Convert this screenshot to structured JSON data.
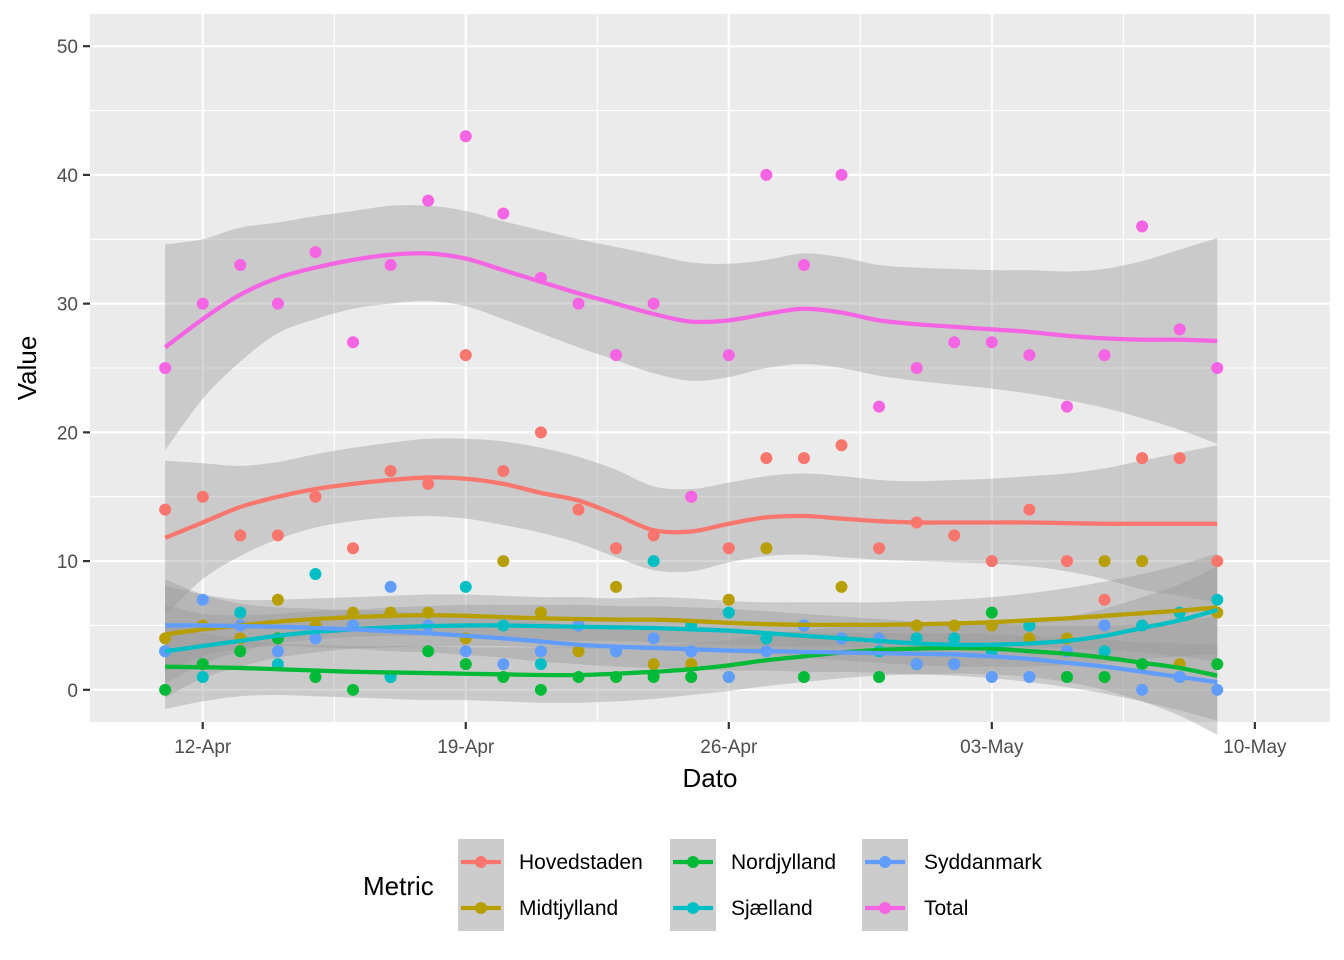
{
  "chart_data": {
    "type": "scatter",
    "title": "",
    "xlabel": "Dato",
    "ylabel": "Value",
    "ylim": [
      -2.5,
      52.5
    ],
    "xlim": [
      "2020-04-09",
      "2020-05-12"
    ],
    "y_ticks": [
      0,
      10,
      20,
      30,
      40,
      50
    ],
    "x_ticks": [
      {
        "date": "2020-04-12",
        "label": "12-Apr"
      },
      {
        "date": "2020-04-19",
        "label": "19-Apr"
      },
      {
        "date": "2020-04-26",
        "label": "26-Apr"
      },
      {
        "date": "2020-05-03",
        "label": "03-May"
      },
      {
        "date": "2020-05-10",
        "label": "10-May"
      }
    ],
    "smooth": "loess with confidence band",
    "grid": true,
    "legend_title": "Metric",
    "legend_position": "bottom",
    "x": [
      "2020-04-11",
      "2020-04-12",
      "2020-04-13",
      "2020-04-14",
      "2020-04-15",
      "2020-04-16",
      "2020-04-17",
      "2020-04-18",
      "2020-04-19",
      "2020-04-20",
      "2020-04-21",
      "2020-04-22",
      "2020-04-23",
      "2020-04-24",
      "2020-04-25",
      "2020-04-26",
      "2020-04-27",
      "2020-04-28",
      "2020-04-29",
      "2020-04-30",
      "2020-05-01",
      "2020-05-02",
      "2020-05-03",
      "2020-05-04",
      "2020-05-05",
      "2020-05-06",
      "2020-05-07",
      "2020-05-08",
      "2020-05-09"
    ],
    "series": [
      {
        "name": "Hovedstaden",
        "color": "#F8766D",
        "values": [
          14,
          15,
          12,
          12,
          15,
          11,
          17,
          16,
          26,
          17,
          20,
          14,
          11,
          12,
          15,
          11,
          18,
          18,
          19,
          11,
          13,
          12,
          10,
          14,
          10,
          7,
          18,
          18,
          10
        ],
        "smooth": [
          11.8,
          13,
          14.2,
          15,
          15.6,
          16,
          16.3,
          16.5,
          16.4,
          16,
          15.3,
          14.7,
          13.6,
          12.4,
          12.3,
          12.9,
          13.4,
          13.5,
          13.3,
          13.1,
          13,
          13,
          13,
          13,
          12.95,
          12.9,
          12.9,
          12.9,
          12.9
        ],
        "band_lo": [
          5.8,
          8.6,
          10.4,
          11.7,
          12.6,
          13.1,
          13.4,
          13.5,
          13.3,
          12.8,
          12.2,
          11.4,
          10.3,
          9.3,
          9.2,
          9.9,
          10.4,
          10.5,
          10.3,
          10.1,
          10.0,
          9.9,
          9.8,
          9.6,
          9.2,
          8.6,
          7.8,
          7.3,
          6.8
        ],
        "band_hi": [
          17.8,
          17.6,
          17.4,
          17.7,
          18.3,
          18.8,
          19.2,
          19.5,
          19.5,
          19.3,
          18.8,
          18.1,
          17.1,
          15.8,
          15.6,
          16.1,
          16.6,
          16.8,
          16.6,
          16.3,
          16.2,
          16.3,
          16.4,
          16.6,
          16.8,
          17.2,
          17.8,
          18.4,
          19.0
        ]
      },
      {
        "name": "Midtjylland",
        "color": "#B79F00",
        "values": [
          4,
          5,
          4,
          7,
          5,
          6,
          6,
          6,
          4,
          10,
          6,
          3,
          8,
          2,
          2,
          7,
          11,
          5,
          8,
          4,
          5,
          5,
          5,
          4,
          4,
          10,
          10,
          2,
          6
        ],
        "smooth": [
          4.3,
          4.7,
          5.0,
          5.3,
          5.5,
          5.65,
          5.75,
          5.8,
          5.75,
          5.65,
          5.55,
          5.5,
          5.45,
          5.45,
          5.35,
          5.2,
          5.1,
          5.05,
          5.05,
          5.05,
          5.1,
          5.15,
          5.25,
          5.4,
          5.55,
          5.75,
          5.95,
          6.15,
          6.4
        ],
        "band_lo": [
          0.5,
          2.0,
          3.0,
          3.6,
          3.9,
          4.1,
          4.2,
          4.2,
          4.1,
          4.0,
          3.9,
          3.8,
          3.8,
          3.7,
          3.6,
          3.5,
          3.4,
          3.3,
          3.3,
          3.3,
          3.3,
          3.3,
          3.3,
          3.3,
          3.2,
          3.1,
          2.9,
          2.6,
          2.2
        ],
        "band_hi": [
          8.1,
          7.4,
          7.0,
          7.0,
          7.1,
          7.2,
          7.3,
          7.4,
          7.4,
          7.3,
          7.2,
          7.2,
          7.1,
          7.2,
          7.1,
          6.9,
          6.8,
          6.8,
          6.8,
          6.8,
          6.9,
          7.0,
          7.2,
          7.5,
          7.9,
          8.4,
          9.0,
          9.7,
          10.6
        ]
      },
      {
        "name": "Nordjylland",
        "color": "#00BA38",
        "values": [
          0,
          2,
          3,
          4,
          1,
          0,
          1,
          3,
          2,
          1,
          0,
          1,
          1,
          1,
          1,
          1,
          4,
          1,
          4,
          1,
          2,
          2,
          6,
          5,
          1,
          1,
          2,
          1,
          2
        ],
        "smooth": [
          1.8,
          1.75,
          1.7,
          1.6,
          1.5,
          1.4,
          1.35,
          1.3,
          1.25,
          1.2,
          1.15,
          1.15,
          1.25,
          1.4,
          1.6,
          1.9,
          2.3,
          2.6,
          2.9,
          3.1,
          3.2,
          3.25,
          3.2,
          3.0,
          2.8,
          2.5,
          2.1,
          1.7,
          1.1
        ],
        "band_lo": [
          -1.5,
          -0.9,
          -0.5,
          -0.4,
          -0.5,
          -0.6,
          -0.7,
          -0.8,
          -0.8,
          -0.9,
          -1.0,
          -1.0,
          -0.9,
          -0.7,
          -0.4,
          -0.1,
          0.3,
          0.6,
          0.9,
          1.1,
          1.2,
          1.25,
          1.2,
          1.0,
          0.6,
          0.0,
          -0.9,
          -2.0,
          -3.5
        ],
        "band_hi": [
          5.1,
          4.4,
          3.9,
          3.6,
          3.5,
          3.4,
          3.4,
          3.4,
          3.3,
          3.3,
          3.3,
          3.3,
          3.4,
          3.5,
          3.6,
          3.9,
          4.3,
          4.6,
          4.9,
          5.1,
          5.2,
          5.25,
          5.2,
          5.0,
          5.0,
          5.0,
          5.1,
          5.4,
          5.7
        ]
      },
      {
        "name": "Sjælland",
        "color": "#00BFC4",
        "values": [
          3,
          1,
          6,
          2,
          9,
          5,
          1,
          5,
          8,
          5,
          2,
          5,
          3,
          10,
          5,
          6,
          4,
          5,
          4,
          3,
          4,
          4,
          3,
          5,
          3,
          3,
          5,
          6,
          7
        ],
        "smooth": [
          3.0,
          3.4,
          3.8,
          4.2,
          4.5,
          4.7,
          4.85,
          4.95,
          5.0,
          5.0,
          4.95,
          4.9,
          4.85,
          4.8,
          4.7,
          4.6,
          4.4,
          4.2,
          4.0,
          3.8,
          3.6,
          3.5,
          3.5,
          3.6,
          3.8,
          4.2,
          4.8,
          5.4,
          6.2
        ],
        "band_lo": [
          -0.6,
          0.9,
          1.8,
          2.5,
          2.9,
          3.2,
          3.3,
          3.4,
          3.4,
          3.4,
          3.3,
          3.2,
          3.2,
          3.1,
          3.0,
          2.9,
          2.7,
          2.5,
          2.3,
          2.1,
          1.9,
          1.8,
          1.8,
          1.8,
          1.9,
          2.1,
          2.4,
          2.6,
          2.8
        ],
        "band_hi": [
          6.6,
          5.9,
          5.8,
          5.9,
          6.1,
          6.2,
          6.4,
          6.5,
          6.6,
          6.6,
          6.6,
          6.6,
          6.5,
          6.5,
          6.4,
          6.3,
          6.1,
          5.9,
          5.7,
          5.5,
          5.3,
          5.2,
          5.2,
          5.4,
          5.7,
          6.3,
          7.2,
          8.2,
          9.6
        ]
      },
      {
        "name": "Syddanmark",
        "color": "#619CFF",
        "values": [
          3,
          7,
          5,
          3,
          4,
          5,
          8,
          5,
          3,
          2,
          3,
          5,
          3,
          4,
          3,
          1,
          3,
          5,
          4,
          4,
          2,
          2,
          1,
          1,
          3,
          5,
          0,
          1,
          0
        ],
        "smooth": [
          5.0,
          5.0,
          4.95,
          4.9,
          4.8,
          4.7,
          4.55,
          4.4,
          4.2,
          4.0,
          3.75,
          3.5,
          3.35,
          3.25,
          3.15,
          3.05,
          3.0,
          2.95,
          2.9,
          2.85,
          2.8,
          2.75,
          2.6,
          2.4,
          2.1,
          1.8,
          1.4,
          1.0,
          0.6
        ],
        "band_lo": [
          1.4,
          2.6,
          3.2,
          3.4,
          3.3,
          3.2,
          3.0,
          2.9,
          2.7,
          2.5,
          2.2,
          2.0,
          1.8,
          1.7,
          1.6,
          1.5,
          1.5,
          1.4,
          1.4,
          1.3,
          1.2,
          1.1,
          0.9,
          0.6,
          0.2,
          -0.3,
          -0.9,
          -1.6,
          -2.4
        ],
        "band_hi": [
          8.6,
          7.4,
          6.7,
          6.4,
          6.3,
          6.2,
          6.1,
          5.9,
          5.7,
          5.5,
          5.3,
          5.0,
          4.9,
          4.8,
          4.7,
          4.6,
          4.5,
          4.5,
          4.4,
          4.4,
          4.4,
          4.4,
          4.3,
          4.2,
          4.0,
          3.9,
          3.7,
          3.6,
          3.6
        ]
      },
      {
        "name": "Total",
        "color": "#F564E3",
        "values": [
          25,
          30,
          33,
          30,
          34,
          27,
          33,
          38,
          43,
          37,
          32,
          30,
          26,
          30,
          15,
          26,
          40,
          33,
          40,
          22,
          25,
          27,
          27,
          26,
          22,
          26,
          36,
          28,
          25
        ],
        "smooth": [
          26.6,
          28.8,
          30.7,
          32.0,
          32.8,
          33.4,
          33.8,
          33.9,
          33.5,
          32.6,
          31.7,
          30.8,
          30.0,
          29.2,
          28.6,
          28.7,
          29.2,
          29.6,
          29.3,
          28.7,
          28.4,
          28.2,
          28.0,
          27.8,
          27.5,
          27.3,
          27.2,
          27.2,
          27.1
        ],
        "band_lo": [
          18.6,
          22.6,
          25.5,
          27.7,
          28.8,
          29.6,
          30.0,
          30.2,
          29.8,
          28.8,
          27.7,
          26.6,
          25.6,
          24.6,
          24.0,
          24.3,
          25.0,
          25.3,
          25.0,
          24.4,
          24.0,
          23.7,
          23.4,
          23.0,
          22.5,
          21.9,
          21.1,
          20.2,
          19.1
        ],
        "band_hi": [
          34.6,
          35.0,
          35.9,
          36.3,
          36.8,
          37.2,
          37.6,
          37.6,
          37.2,
          36.4,
          35.7,
          35.0,
          34.4,
          33.8,
          33.2,
          33.1,
          33.4,
          33.9,
          33.6,
          33.0,
          32.8,
          32.7,
          32.6,
          32.6,
          32.5,
          32.7,
          33.3,
          34.2,
          35.1
        ]
      }
    ]
  }
}
